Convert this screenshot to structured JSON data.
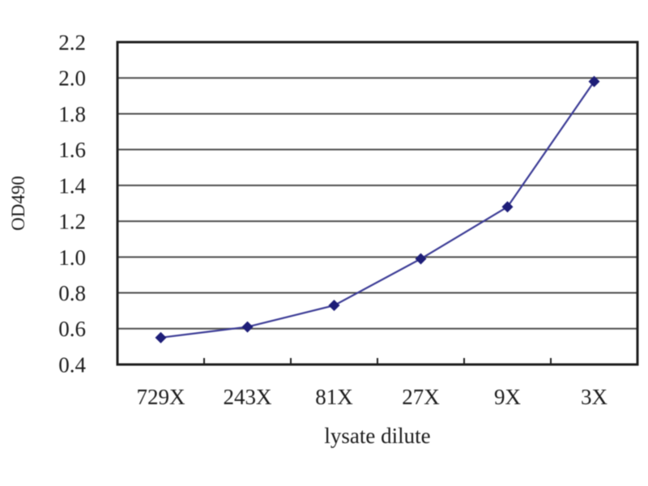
{
  "page": {
    "background": "#ffffff"
  },
  "chart_data": {
    "type": "line",
    "title": "",
    "xlabel": "lysate dilute",
    "ylabel": "OD490",
    "categories": [
      "729X",
      "243X",
      "81X",
      "27X",
      "9X",
      "3X"
    ],
    "series": [
      {
        "name": "OD490",
        "values": [
          0.55,
          0.61,
          0.73,
          0.99,
          1.28,
          1.98
        ]
      }
    ],
    "ylim": [
      0.4,
      2.2
    ],
    "ytick_step": 0.2,
    "ytick_labels": [
      "0.4",
      "0.6",
      "0.8",
      "1.0",
      "1.2",
      "1.4",
      "1.6",
      "1.8",
      "2.0",
      "2.2"
    ],
    "grid": "horizontal",
    "legend": "none",
    "marker_shape": "diamond",
    "colors": {
      "line": "#3c3c96",
      "marker": "#1e1e78",
      "grid": "#4d4d4d",
      "axis": "#1f1f1f",
      "text": "#1c1c1c",
      "background": "#ffffff"
    }
  }
}
